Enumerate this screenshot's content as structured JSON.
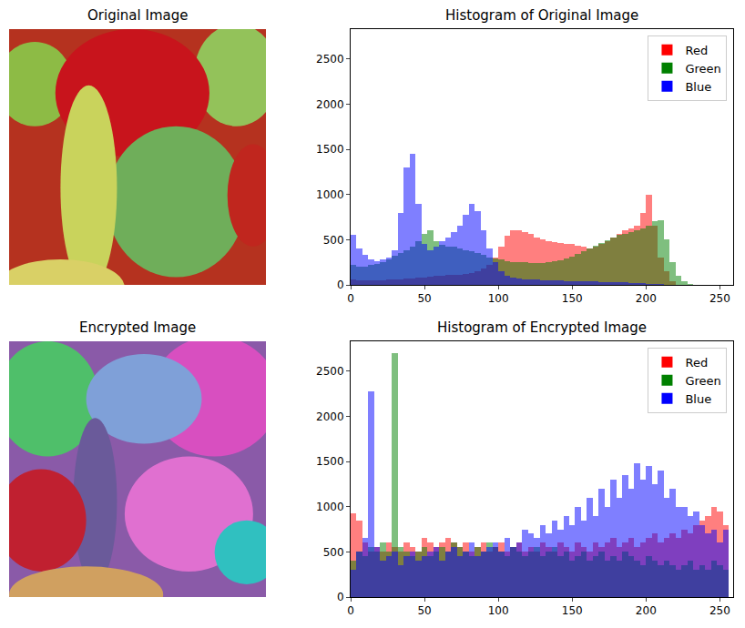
{
  "chart_data": [
    {
      "type": "image",
      "title": "Original Image",
      "tick_labels": false
    },
    {
      "type": "histogram",
      "title": "Histogram of Original Image",
      "bins": [
        0,
        4,
        8,
        12,
        16,
        20,
        24,
        28,
        32,
        36,
        40,
        44,
        48,
        52,
        56,
        60,
        64,
        68,
        72,
        76,
        80,
        84,
        88,
        92,
        96,
        100,
        104,
        108,
        112,
        116,
        120,
        124,
        128,
        132,
        136,
        140,
        144,
        148,
        152,
        156,
        160,
        164,
        168,
        172,
        176,
        180,
        184,
        188,
        192,
        196,
        200,
        204,
        208,
        212,
        216,
        220,
        224,
        228,
        232,
        236,
        240,
        244,
        248,
        252,
        256
      ],
      "series": [
        {
          "name": "Red",
          "color": "#ff0000",
          "values": [
            60,
            50,
            50,
            50,
            50,
            50,
            60,
            60,
            60,
            70,
            70,
            80,
            80,
            90,
            100,
            100,
            110,
            110,
            110,
            120,
            130,
            150,
            180,
            220,
            300,
            420,
            540,
            600,
            600,
            580,
            560,
            520,
            500,
            480,
            470,
            460,
            450,
            450,
            430,
            420,
            400,
            420,
            450,
            480,
            520,
            560,
            600,
            620,
            650,
            800,
            1000,
            650,
            300,
            150,
            40,
            5,
            0,
            0,
            0,
            0,
            0,
            0,
            0,
            0
          ]
        },
        {
          "name": "Green",
          "color": "#008000",
          "values": [
            220,
            200,
            200,
            220,
            230,
            250,
            280,
            320,
            350,
            380,
            420,
            480,
            560,
            600,
            480,
            440,
            420,
            420,
            400,
            380,
            370,
            350,
            330,
            300,
            290,
            280,
            260,
            250,
            250,
            250,
            240,
            240,
            240,
            250,
            260,
            270,
            290,
            310,
            340,
            370,
            400,
            430,
            460,
            490,
            520,
            550,
            560,
            580,
            600,
            620,
            650,
            700,
            720,
            500,
            250,
            100,
            40,
            10,
            0,
            0,
            0,
            0,
            0,
            0
          ]
        },
        {
          "name": "Blue",
          "color": "#0000ff",
          "values": [
            550,
            400,
            330,
            280,
            260,
            280,
            300,
            380,
            800,
            1300,
            1450,
            900,
            450,
            380,
            420,
            480,
            520,
            580,
            650,
            780,
            900,
            820,
            600,
            400,
            250,
            150,
            100,
            80,
            70,
            60,
            60,
            60,
            50,
            50,
            50,
            50,
            45,
            45,
            40,
            40,
            40,
            40,
            35,
            35,
            30,
            30,
            30,
            25,
            20,
            20,
            15,
            10,
            10,
            5,
            5,
            0,
            0,
            0,
            0,
            0,
            0,
            0,
            0,
            0
          ]
        }
      ],
      "xlim": [
        0,
        259
      ],
      "xticks": [
        0,
        50,
        100,
        150,
        200,
        250
      ],
      "ylim": [
        0,
        2830
      ],
      "yticks": [
        0,
        500,
        1000,
        1500,
        2000,
        2500
      ],
      "legend": "upper right"
    },
    {
      "type": "image",
      "title": "Encrypted Image",
      "tick_labels": false
    },
    {
      "type": "histogram",
      "title": "Histogram of Encrypted Image",
      "bins": [
        0,
        4,
        8,
        12,
        16,
        20,
        24,
        28,
        32,
        36,
        40,
        44,
        48,
        52,
        56,
        60,
        64,
        68,
        72,
        76,
        80,
        84,
        88,
        92,
        96,
        100,
        104,
        108,
        112,
        116,
        120,
        124,
        128,
        132,
        136,
        140,
        144,
        148,
        152,
        156,
        160,
        164,
        168,
        172,
        176,
        180,
        184,
        188,
        192,
        196,
        200,
        204,
        208,
        212,
        216,
        220,
        224,
        228,
        232,
        236,
        240,
        244,
        248,
        252,
        256
      ],
      "series": [
        {
          "name": "Red",
          "color": "#ff0000",
          "values": [
            930,
            850,
            600,
            500,
            550,
            500,
            600,
            550,
            500,
            600,
            550,
            500,
            650,
            600,
            550,
            600,
            650,
            600,
            550,
            600,
            500,
            550,
            600,
            500,
            550,
            600,
            500,
            550,
            600,
            500,
            550,
            500,
            600,
            550,
            500,
            600,
            550,
            500,
            600,
            550,
            500,
            600,
            550,
            600,
            650,
            550,
            600,
            650,
            550,
            600,
            650,
            700,
            600,
            650,
            700,
            650,
            750,
            700,
            800,
            850,
            900,
            1000,
            950,
            800
          ]
        },
        {
          "name": "Green",
          "color": "#008000",
          "values": [
            400,
            500,
            450,
            550,
            500,
            600,
            500,
            2700,
            550,
            500,
            450,
            500,
            550,
            450,
            500,
            550,
            500,
            600,
            550,
            500,
            450,
            550,
            500,
            600,
            550,
            500,
            450,
            550,
            500,
            450,
            500,
            550,
            450,
            500,
            550,
            450,
            500,
            400,
            450,
            500,
            400,
            450,
            500,
            400,
            450,
            400,
            500,
            450,
            400,
            350,
            450,
            400,
            350,
            400,
            350,
            300,
            350,
            400,
            300,
            350,
            300,
            400,
            350,
            300
          ]
        },
        {
          "name": "Blue",
          "color": "#0000ff",
          "values": [
            300,
            500,
            650,
            2280,
            550,
            400,
            450,
            500,
            350,
            450,
            500,
            400,
            450,
            500,
            550,
            400,
            500,
            550,
            450,
            500,
            600,
            450,
            500,
            550,
            600,
            500,
            650,
            550,
            600,
            750,
            700,
            650,
            800,
            700,
            850,
            750,
            900,
            800,
            1000,
            850,
            1100,
            900,
            1200,
            1000,
            1300,
            1100,
            1350,
            1200,
            1480,
            1300,
            1450,
            1250,
            1400,
            1100,
            1200,
            1000,
            1000,
            900,
            950,
            800,
            700,
            750,
            600,
            750
          ]
        }
      ],
      "xlim": [
        0,
        259
      ],
      "xticks": [
        0,
        50,
        100,
        150,
        200,
        250
      ],
      "ylim": [
        0,
        2830
      ],
      "yticks": [
        0,
        500,
        1000,
        1500,
        2000,
        2500
      ],
      "legend": "upper right"
    }
  ]
}
